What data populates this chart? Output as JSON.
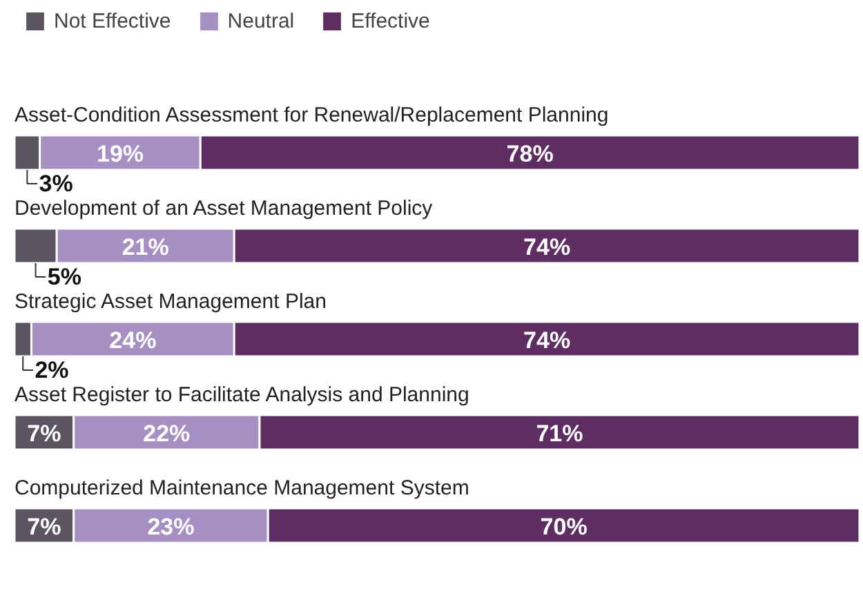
{
  "chart_data": {
    "type": "bar",
    "orientation": "horizontal",
    "stacked": true,
    "legend": "top left",
    "categories": [
      "Asset-Condition Assessment for Renewal/Replacement Planning",
      "Development of an Asset Management Policy",
      "Strategic Asset Management Plan",
      "Asset Register to Facilitate Analysis and Planning",
      "Computerized Maintenance Management System"
    ],
    "series": [
      {
        "name": "Not Effective",
        "color": "#5a5560",
        "values": [
          3,
          5,
          2,
          7,
          7
        ],
        "value_labels": [
          "3%",
          "5%",
          "2%",
          "7%",
          "7%"
        ]
      },
      {
        "name": "Neutral",
        "color": "#a68fc2",
        "values": [
          19,
          21,
          24,
          22,
          23
        ],
        "value_labels": [
          "19%",
          "21%",
          "24%",
          "22%",
          "23%"
        ]
      },
      {
        "name": "Effective",
        "color": "#5e2d62",
        "values": [
          78,
          74,
          74,
          71,
          70
        ],
        "value_labels": [
          "78%",
          "74%",
          "74%",
          "71%",
          "70%"
        ]
      }
    ]
  }
}
